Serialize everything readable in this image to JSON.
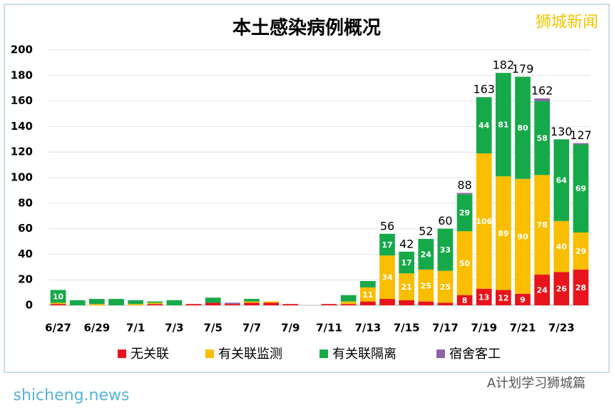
{
  "chart_data": {
    "type": "stacked-bar",
    "title": "本土感染病例概况",
    "categories": [
      "6/27",
      null,
      "6/29",
      null,
      "7/1",
      null,
      "7/3",
      null,
      "7/5",
      null,
      "7/7",
      null,
      "7/9",
      null,
      "7/11",
      null,
      "7/13",
      null,
      "7/15",
      null,
      "7/17",
      null,
      "7/19",
      null,
      "7/21",
      null,
      "7/23",
      null
    ],
    "series": [
      {
        "name": "无关联",
        "color": "#e8141b",
        "values": [
          1,
          0,
          0,
          0,
          0,
          1,
          0,
          1,
          2,
          1,
          2,
          2,
          1,
          0,
          1,
          1,
          3,
          5,
          4,
          3,
          2,
          8,
          13,
          12,
          9,
          24,
          26,
          28
        ]
      },
      {
        "name": "有关联监测",
        "color": "#f9be00",
        "values": [
          1,
          0,
          1,
          0,
          1,
          1,
          0,
          0,
          0,
          0,
          1,
          1,
          0,
          0,
          0,
          2,
          11,
          34,
          21,
          25,
          25,
          50,
          106,
          89,
          90,
          78,
          40,
          29
        ]
      },
      {
        "name": "有关联隔离",
        "color": "#16a94a",
        "values": [
          10,
          4,
          4,
          5,
          3,
          1,
          4,
          0,
          4,
          0,
          2,
          0,
          0,
          0,
          0,
          5,
          5,
          17,
          17,
          24,
          33,
          29,
          44,
          81,
          80,
          58,
          64,
          69
        ]
      },
      {
        "name": "宿舍客工",
        "color": "#8e62a8",
        "values": [
          0,
          0,
          0,
          0,
          0,
          0,
          0,
          0,
          0,
          1,
          0,
          0,
          0,
          0,
          0,
          0,
          0,
          0,
          0,
          0,
          0,
          1,
          0,
          0,
          0,
          2,
          0,
          1
        ]
      }
    ],
    "totals": [
      null,
      null,
      null,
      null,
      null,
      null,
      null,
      null,
      null,
      null,
      null,
      null,
      null,
      null,
      null,
      null,
      null,
      56,
      42,
      52,
      60,
      88,
      163,
      182,
      179,
      162,
      130,
      127
    ],
    "ylim": [
      0,
      200
    ],
    "yticks": [
      0,
      20,
      40,
      60,
      80,
      100,
      120,
      140,
      160,
      180,
      200
    ],
    "grid": true,
    "legend": "bottom"
  },
  "watermarks": {
    "top": "狮城新闻",
    "bottom_left": "shicheng.news",
    "bottom_right": "A计划学习狮城篇"
  }
}
